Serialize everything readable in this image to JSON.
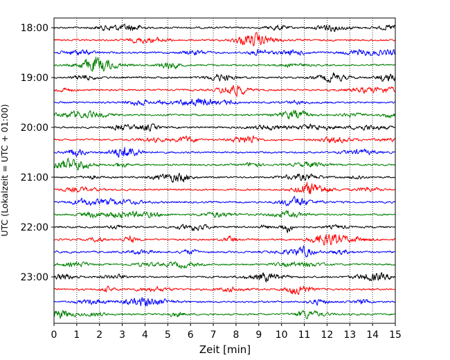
{
  "chart_data": {
    "type": "line",
    "title": "",
    "xlabel": "Zeit  [min]",
    "ylabel": "UTC (Lokalzeit = UTC + 01:00)",
    "xlim": [
      0,
      15
    ],
    "x_ticks": [
      "0",
      "1",
      "2",
      "3",
      "4",
      "5",
      "6",
      "7",
      "8",
      "9",
      "10",
      "11",
      "12",
      "13",
      "14",
      "15"
    ],
    "y_ticks": [
      "18:00",
      "19:00",
      "20:00",
      "21:00",
      "22:00",
      "23:00"
    ],
    "grid": "vertical dotted lines at each minute",
    "trace_interval_min": 15,
    "trace_start": "18:00",
    "trace_count": 24,
    "trace_colors": [
      "#000000",
      "#ff0000",
      "#0000ff",
      "#008000"
    ],
    "traces": [
      {
        "start": "18:00",
        "color": "#000000"
      },
      {
        "start": "18:15",
        "color": "#ff0000"
      },
      {
        "start": "18:30",
        "color": "#0000ff"
      },
      {
        "start": "18:45",
        "color": "#008000"
      },
      {
        "start": "19:00",
        "color": "#000000"
      },
      {
        "start": "19:15",
        "color": "#ff0000"
      },
      {
        "start": "19:30",
        "color": "#0000ff"
      },
      {
        "start": "19:45",
        "color": "#008000"
      },
      {
        "start": "20:00",
        "color": "#000000"
      },
      {
        "start": "20:15",
        "color": "#ff0000"
      },
      {
        "start": "20:30",
        "color": "#0000ff"
      },
      {
        "start": "20:45",
        "color": "#008000"
      },
      {
        "start": "21:00",
        "color": "#000000"
      },
      {
        "start": "21:15",
        "color": "#ff0000"
      },
      {
        "start": "21:30",
        "color": "#0000ff"
      },
      {
        "start": "21:45",
        "color": "#008000"
      },
      {
        "start": "22:00",
        "color": "#000000"
      },
      {
        "start": "22:15",
        "color": "#ff0000"
      },
      {
        "start": "22:30",
        "color": "#0000ff"
      },
      {
        "start": "22:45",
        "color": "#008000"
      },
      {
        "start": "23:00",
        "color": "#000000"
      },
      {
        "start": "23:15",
        "color": "#ff0000"
      },
      {
        "start": "23:30",
        "color": "#0000ff"
      },
      {
        "start": "23:45",
        "color": "#008000"
      }
    ]
  }
}
